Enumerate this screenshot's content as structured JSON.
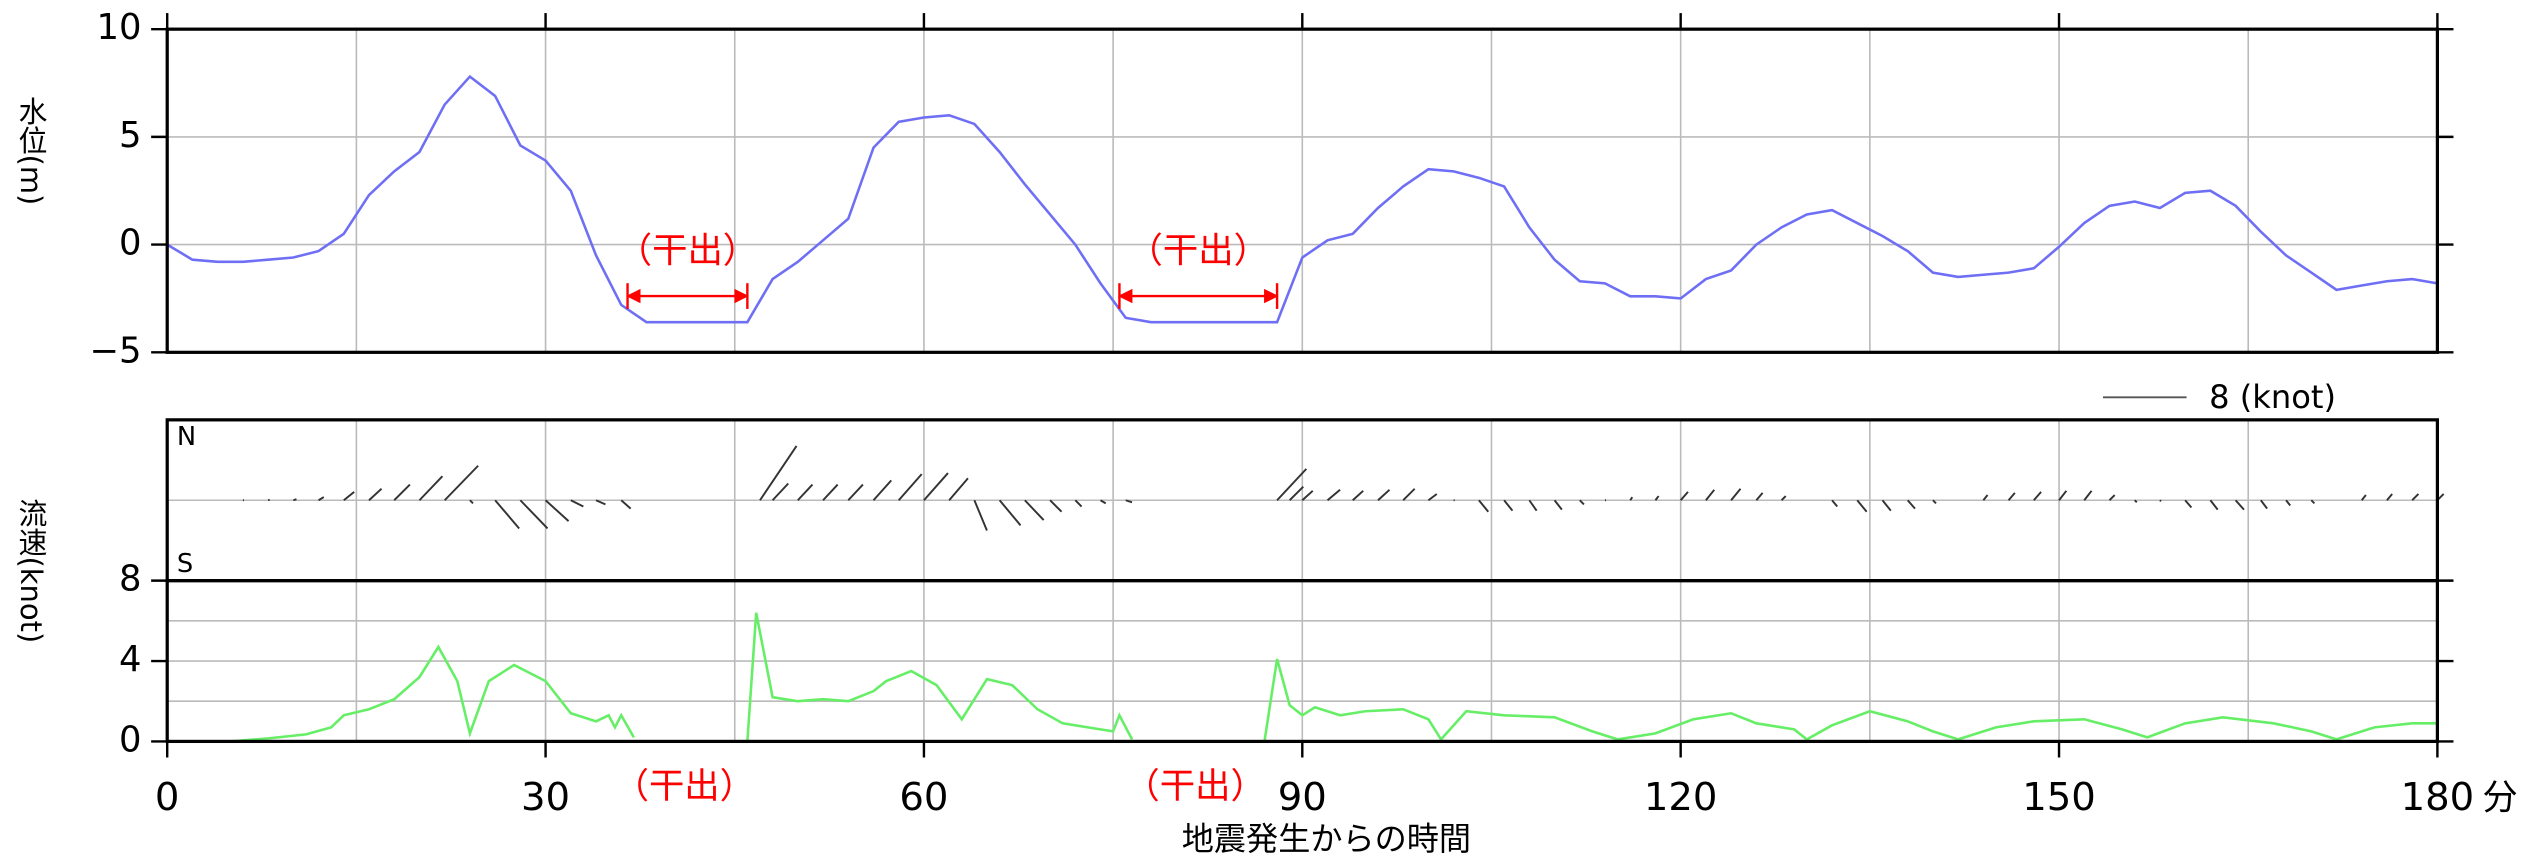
{
  "chart_data": [
    {
      "type": "line",
      "ylabel": "水位(m)",
      "color": "#6f6ff5",
      "ylim": [
        -5,
        10
      ],
      "yticks": [
        {
          "value": -5,
          "label": "−5"
        },
        0,
        5,
        10
      ],
      "grid": true,
      "x": [
        0,
        2,
        4,
        6,
        8,
        10,
        12,
        14,
        16,
        18,
        20,
        22,
        24,
        26,
        28,
        30,
        32,
        34,
        36,
        38,
        40,
        42,
        44,
        46,
        48,
        50,
        52,
        54,
        56,
        58,
        60,
        62,
        64,
        66,
        68,
        70,
        72,
        74,
        76,
        78,
        80,
        82,
        84,
        86,
        88,
        90,
        92,
        94,
        96,
        98,
        100,
        102,
        104,
        106,
        108,
        110,
        112,
        114,
        116,
        118,
        120,
        122,
        124,
        126,
        128,
        130,
        132,
        134,
        136,
        138,
        140,
        142,
        144,
        146,
        148,
        150,
        152,
        154,
        156,
        158,
        160,
        162,
        164,
        166,
        168,
        170,
        172,
        174,
        176,
        178,
        180
      ],
      "values": [
        0,
        -0.7,
        -0.8,
        -0.8,
        -0.7,
        -0.6,
        -0.3,
        0.5,
        2.3,
        3.4,
        4.3,
        6.5,
        7.8,
        6.9,
        4.6,
        3.9,
        2.5,
        -0.5,
        -2.8,
        -3.6,
        -3.6,
        -3.6,
        -3.6,
        -3.6,
        -1.6,
        -0.8,
        0.2,
        1.2,
        4.5,
        5.7,
        5.9,
        6.0,
        5.6,
        4.3,
        2.8,
        1.4,
        0.0,
        -1.8,
        -3.4,
        -3.6,
        -3.6,
        -3.6,
        -3.6,
        -3.6,
        -3.6,
        -0.6,
        0.2,
        0.5,
        1.7,
        2.7,
        3.5,
        3.4,
        3.1,
        2.7,
        0.8,
        -0.7,
        -1.7,
        -1.8,
        -2.4,
        -2.4,
        -2.5,
        -1.6,
        -1.2,
        0.0,
        0.8,
        1.4,
        1.6,
        1.0,
        0.4,
        -0.3,
        -1.3,
        -1.5,
        -1.4,
        -1.3,
        -1.1,
        -0.1,
        1.0,
        1.8,
        2.0,
        1.7,
        2.4,
        2.5,
        1.8,
        0.6,
        -0.5,
        -1.3,
        -2.1,
        -1.9,
        -1.7,
        -1.6,
        -1.8
      ],
      "annotations": [
        {
          "text": "（干出）",
          "x": [
            36.5,
            46
          ],
          "color": "#ff0000"
        },
        {
          "text": "（干出）",
          "x": [
            75.5,
            88
          ],
          "color": "#ff0000"
        }
      ]
    },
    {
      "type": "stick",
      "north_label": "N",
      "south_label": "S",
      "color": "#333333",
      "scale": {
        "value": 8,
        "label": "8 (knot)"
      },
      "x": [
        6,
        8,
        10,
        12,
        14,
        16,
        18,
        20,
        22,
        24,
        26,
        28,
        30,
        32,
        34,
        36,
        47,
        48,
        50,
        52,
        54,
        56,
        58,
        60,
        62,
        64,
        66,
        68,
        70,
        72,
        74,
        76,
        88,
        89,
        90,
        92,
        94,
        96,
        98,
        100,
        102,
        104,
        106,
        108,
        110,
        112,
        114,
        116,
        118,
        120,
        122,
        124,
        126,
        128,
        130,
        132,
        134,
        136,
        138,
        140,
        142,
        144,
        146,
        148,
        150,
        152,
        154,
        156,
        158,
        160,
        162,
        164,
        166,
        168,
        170,
        172,
        174,
        176,
        178,
        180
      ],
      "east": [
        0.1,
        0.15,
        0.3,
        0.5,
        1.0,
        1.2,
        1.5,
        2.2,
        3.2,
        0.3,
        2.3,
        2.6,
        2.2,
        1.2,
        0.9,
        0.9,
        3.5,
        1.5,
        1.4,
        1.4,
        1.4,
        1.7,
        2.2,
        2.3,
        1.8,
        1.2,
        2.0,
        1.8,
        1.1,
        0.6,
        0.5,
        0.6,
        2.8,
        1.3,
        1.0,
        1.2,
        1.0,
        1.1,
        1.1,
        0.8,
        0.1,
        0.9,
        0.8,
        0.7,
        0.7,
        0.4,
        0.1,
        0.2,
        0.3,
        0.7,
        0.8,
        0.9,
        0.6,
        0.4,
        0.0,
        0.5,
        0.9,
        0.8,
        0.7,
        0.3,
        0.0,
        0.4,
        0.6,
        0.7,
        0.7,
        0.7,
        0.5,
        0.2,
        0.1,
        0.6,
        0.7,
        0.8,
        0.6,
        0.4,
        0.3,
        0.0,
        0.4,
        0.5,
        0.6,
        0.6
      ],
      "north": [
        0.0,
        0.05,
        0.1,
        0.3,
        0.8,
        1.1,
        1.5,
        2.3,
        3.3,
        -0.3,
        -2.7,
        -2.7,
        -2.0,
        -0.6,
        -0.4,
        -0.8,
        5.2,
        1.6,
        1.5,
        1.5,
        1.5,
        1.9,
        2.5,
        2.6,
        2.1,
        -2.9,
        -2.4,
        -1.9,
        -1.1,
        -0.6,
        -0.3,
        -0.2,
        3.0,
        1.3,
        0.9,
        1.0,
        0.9,
        1.0,
        1.1,
        0.6,
        0.0,
        -1.1,
        -1.0,
        -1.0,
        -0.9,
        -0.4,
        0.0,
        0.3,
        0.4,
        0.8,
        1.0,
        1.1,
        0.7,
        0.4,
        0.0,
        -0.6,
        -1.1,
        -1.0,
        -0.8,
        -0.3,
        0.0,
        0.5,
        0.7,
        0.8,
        0.9,
        0.9,
        0.5,
        -0.2,
        -0.1,
        -0.7,
        -0.9,
        -0.9,
        -0.8,
        -0.5,
        -0.3,
        0.0,
        0.5,
        0.6,
        0.6,
        0.6
      ]
    },
    {
      "type": "line",
      "ylabel": "流速(knot)",
      "xlabel": "地震発生からの時間",
      "xunit": "分",
      "color": "#66ee66",
      "xlim": [
        0,
        180
      ],
      "xticks": [
        0,
        30,
        60,
        90,
        120,
        150,
        180
      ],
      "xgrid": [
        0,
        15,
        30,
        45,
        60,
        75,
        90,
        105,
        120,
        135,
        150,
        165,
        180
      ],
      "ylim": [
        0,
        8
      ],
      "yticks": [
        0,
        4,
        8
      ],
      "ygrid": [
        0,
        2,
        4,
        6,
        8
      ],
      "x": [
        5,
        8,
        11,
        13,
        14,
        16,
        18,
        20,
        21.5,
        23,
        24,
        25.5,
        27.5,
        30,
        32,
        34,
        35,
        35.5,
        36,
        37,
        41,
        46,
        46.7,
        48,
        50,
        52,
        54,
        56,
        57,
        59,
        61,
        63,
        65,
        67,
        69,
        71,
        73,
        75,
        75.5,
        76.5,
        82,
        87,
        88,
        89,
        90,
        91,
        93,
        95,
        98,
        100,
        101,
        103,
        106,
        110,
        113,
        115,
        118,
        121,
        124,
        126,
        129,
        130,
        132,
        135,
        138,
        140,
        142,
        145,
        148,
        152,
        155,
        157,
        160,
        163,
        167,
        170,
        172,
        175,
        178,
        180
      ],
      "values": [
        0,
        0.15,
        0.35,
        0.7,
        1.3,
        1.6,
        2.1,
        3.2,
        4.7,
        3.0,
        0.4,
        3.0,
        3.8,
        3.0,
        1.4,
        1.0,
        1.3,
        0.7,
        1.3,
        0.2,
        null,
        0,
        6.4,
        2.2,
        2.0,
        2.1,
        2.0,
        2.5,
        3.0,
        3.5,
        2.8,
        1.1,
        3.1,
        2.8,
        1.6,
        0.9,
        0.7,
        0.5,
        1.3,
        0.1,
        null,
        0,
        4.1,
        1.8,
        1.3,
        1.7,
        1.3,
        1.5,
        1.6,
        1.1,
        0.1,
        1.5,
        1.3,
        1.2,
        0.5,
        0.1,
        0.4,
        1.1,
        1.4,
        0.9,
        0.6,
        0.1,
        0.8,
        1.5,
        1.0,
        0.5,
        0.1,
        0.7,
        1.0,
        1.1,
        0.6,
        0.2,
        0.9,
        1.2,
        0.9,
        0.5,
        0.1,
        0.7,
        0.9,
        0.9
      ],
      "annotations": [
        {
          "text": "（干出）",
          "x": 41,
          "color": "#ff0000"
        },
        {
          "text": "（干出）",
          "x": 81.5,
          "color": "#ff0000"
        }
      ]
    }
  ]
}
